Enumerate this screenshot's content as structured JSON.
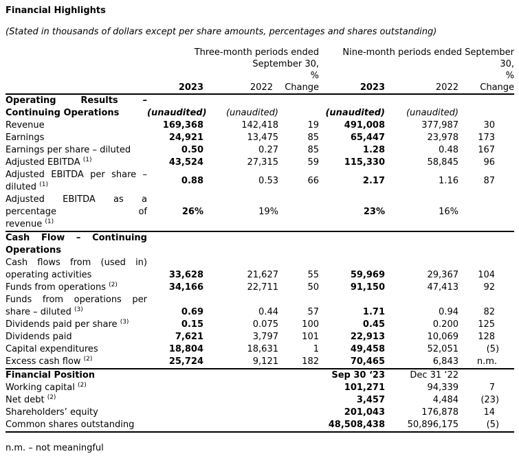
{
  "page": {
    "title": "Financial Highlights",
    "subtitle": "(Stated in thousands of dollars except per share amounts, percentages and shares outstanding)",
    "footnote": "n.m. – not meaningful"
  },
  "table": {
    "header": {
      "group1": "Three-month periods ended\nSeptember 30,",
      "group2": "Nine-month periods ended September\n30,",
      "percent_label": "%",
      "col_2023": "2023",
      "col_2022": "2022",
      "col_change": "Change"
    },
    "rows": [
      {
        "type": "section",
        "label": "Operating Results –\nContinuing Operations",
        "valign": "bottom",
        "values_italic": true,
        "a2023": "(unaudited)",
        "a2022": "(unaudited)",
        "b2023": "(unaudited)",
        "b2022": "(unaudited)"
      },
      {
        "type": "data",
        "label": "Revenue",
        "a2023": "169,368",
        "a2022": "142,418",
        "achg": "19",
        "b2023": "491,008",
        "b2022": "377,987",
        "bchg": "30"
      },
      {
        "type": "data",
        "label": "Earnings",
        "a2023": "24,921",
        "a2022": "13,475",
        "achg": "85",
        "b2023": "65,447",
        "b2022": "23,978",
        "bchg": "173"
      },
      {
        "type": "data",
        "label": "Earnings per share – diluted",
        "a2023": "0.50",
        "a2022": "0.27",
        "achg": "85",
        "b2023": "1.28",
        "b2022": "0.48",
        "bchg": "167"
      },
      {
        "type": "data",
        "label": "Adjusted EBITDA ^(1)",
        "a2023": "43,524",
        "a2022": "27,315",
        "achg": "59",
        "b2023": "115,330",
        "b2022": "58,845",
        "bchg": "96"
      },
      {
        "type": "data",
        "label": "Adjusted EBITDA per share –\ndiluted ^(1)",
        "valign": "middle",
        "a2023": "0.88",
        "a2022": "0.53",
        "achg": "66",
        "b2023": "2.17",
        "b2022": "1.16",
        "bchg": "87"
      },
      {
        "type": "data",
        "label": "Adjusted EBITDA as a\npercentage of\nrevenue ^(1)",
        "valign": "middle",
        "a2023": "26%",
        "a2022": "19%",
        "achg": "",
        "b2023": "23%",
        "b2022": "16%",
        "bchg": ""
      },
      {
        "type": "section",
        "rule": true,
        "label": "Cash Flow – Continuing\nOperations"
      },
      {
        "type": "data",
        "label": "Cash flows from (used in)\noperating activities",
        "valign": "bottom",
        "a2023": "33,628",
        "a2022": "21,627",
        "achg": "55",
        "b2023": "59,969",
        "b2022": "29,367",
        "bchg": "104"
      },
      {
        "type": "data",
        "label": "Funds from operations ^(2)",
        "a2023": "34,166",
        "a2022": "22,711",
        "achg": "50",
        "b2023": "91,150",
        "b2022": "47,413",
        "bchg": "92"
      },
      {
        "type": "data",
        "label": "Funds from operations per\nshare – diluted ^(3)",
        "valign": "bottom",
        "a2023": "0.69",
        "a2022": "0.44",
        "achg": "57",
        "b2023": "1.71",
        "b2022": "0.94",
        "bchg": "82"
      },
      {
        "type": "data",
        "label": "Dividends paid per share ^(3)",
        "a2023": "0.15",
        "a2022": "0.075",
        "achg": "100",
        "b2023": "0.45",
        "b2022": "0.200",
        "bchg": "125"
      },
      {
        "type": "data",
        "label": "Dividends paid",
        "a2023": "7,621",
        "a2022": "3,797",
        "achg": "101",
        "b2023": "22,913",
        "b2022": "10,069",
        "bchg": "128"
      },
      {
        "type": "data",
        "label": "Capital expenditures",
        "a2023": "18,804",
        "a2022": "18,631",
        "achg": "1",
        "b2023": "49,458",
        "b2022": "52,051",
        "bchg": "(5)"
      },
      {
        "type": "data",
        "label": "Excess cash flow ^(2)",
        "a2023": "25,724",
        "a2022": "9,121",
        "achg": "182",
        "b2023": "70,465",
        "b2022": "6,843",
        "bchg": "n.m."
      },
      {
        "type": "section",
        "rule": true,
        "label": "Financial Position",
        "b2023": "Sep 30 ‘23",
        "b2022": "Dec 31 ‘22"
      },
      {
        "type": "data",
        "label": "Working capital ^(2)",
        "b2023": "101,271",
        "b2022": "94,339",
        "bchg": "7"
      },
      {
        "type": "data",
        "label": "Net debt ^(2)",
        "b2023": "3,457",
        "b2022": "4,484",
        "bchg": "(23)"
      },
      {
        "type": "data",
        "label": "Shareholders’ equity",
        "b2023": "201,043",
        "b2022": "176,878",
        "bchg": "14"
      },
      {
        "type": "data",
        "label": "Common shares outstanding",
        "b2023": "48,508,438",
        "b2022": "50,896,175",
        "bchg": "(5)"
      }
    ]
  }
}
